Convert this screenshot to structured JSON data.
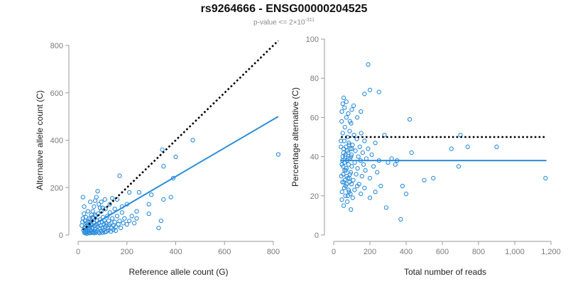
{
  "header": {
    "title": "rs9264666 - ENSG00000204525",
    "subtitle_prefix": "p-value <= 2",
    "subtitle_times": "×",
    "subtitle_base": "10",
    "subtitle_exp": "-311"
  },
  "colors": {
    "points": "#2b8cdb",
    "fit_line": "#2b8cdb",
    "reference_line": "#000000"
  },
  "chart_data": [
    {
      "type": "scatter",
      "xlabel": "Reference allele count (G)",
      "ylabel": "Alternative allele count (C)",
      "xlim": [
        0,
        840
      ],
      "ylim": [
        0,
        820
      ],
      "xticks": [
        0,
        200,
        400,
        600,
        800
      ],
      "xtick_labels": [
        "0",
        "200",
        "400",
        "600",
        "800"
      ],
      "yticks": [
        0,
        200,
        400,
        600,
        800
      ],
      "ytick_labels": [
        "0",
        "200",
        "400",
        "600",
        "800"
      ],
      "grid": false,
      "points": [
        [
          22,
          20
        ],
        [
          25,
          28
        ],
        [
          28,
          15
        ],
        [
          30,
          35
        ],
        [
          32,
          22
        ],
        [
          35,
          40
        ],
        [
          38,
          18
        ],
        [
          40,
          30
        ],
        [
          42,
          45
        ],
        [
          45,
          25
        ],
        [
          48,
          55
        ],
        [
          50,
          35
        ],
        [
          52,
          20
        ],
        [
          55,
          60
        ],
        [
          58,
          42
        ],
        [
          60,
          30
        ],
        [
          62,
          70
        ],
        [
          65,
          50
        ],
        [
          68,
          38
        ],
        [
          70,
          25
        ],
        [
          72,
          80
        ],
        [
          75,
          45
        ],
        [
          78,
          60
        ],
        [
          80,
          35
        ],
        [
          82,
          90
        ],
        [
          85,
          50
        ],
        [
          88,
          30
        ],
        [
          90,
          65
        ],
        [
          92,
          40
        ],
        [
          95,
          100
        ],
        [
          98,
          55
        ],
        [
          100,
          30
        ],
        [
          102,
          75
        ],
        [
          105,
          45
        ],
        [
          108,
          60
        ],
        [
          110,
          35
        ],
        [
          112,
          110
        ],
        [
          115,
          50
        ],
        [
          118,
          40
        ],
        [
          120,
          80
        ],
        [
          122,
          30
        ],
        [
          125,
          60
        ],
        [
          128,
          45
        ],
        [
          130,
          95
        ],
        [
          135,
          50
        ],
        [
          138,
          30
        ],
        [
          140,
          70
        ],
        [
          145,
          40
        ],
        [
          150,
          55
        ],
        [
          155,
          35
        ],
        [
          160,
          80
        ],
        [
          165,
          45
        ],
        [
          170,
          60
        ],
        [
          175,
          30
        ],
        [
          180,
          95
        ],
        [
          185,
          50
        ],
        [
          190,
          70
        ],
        [
          200,
          45
        ],
        [
          210,
          60
        ],
        [
          220,
          80
        ],
        [
          230,
          50
        ],
        [
          240,
          70
        ],
        [
          28,
          60
        ],
        [
          32,
          75
        ],
        [
          35,
          50
        ],
        [
          45,
          70
        ],
        [
          55,
          85
        ],
        [
          60,
          100
        ],
        [
          65,
          120
        ],
        [
          70,
          145
        ],
        [
          75,
          160
        ],
        [
          80,
          185
        ],
        [
          85,
          130
        ],
        [
          90,
          115
        ],
        [
          95,
          140
        ],
        [
          100,
          115
        ],
        [
          110,
          150
        ],
        [
          130,
          130
        ],
        [
          140,
          155
        ],
        [
          150,
          110
        ],
        [
          160,
          150
        ],
        [
          170,
          250
        ],
        [
          180,
          120
        ],
        [
          200,
          130
        ],
        [
          210,
          180
        ],
        [
          240,
          100
        ],
        [
          250,
          180
        ],
        [
          290,
          90
        ],
        [
          290,
          130
        ],
        [
          300,
          170
        ],
        [
          330,
          30
        ],
        [
          340,
          60
        ],
        [
          345,
          360
        ],
        [
          350,
          290
        ],
        [
          350,
          150
        ],
        [
          380,
          160
        ],
        [
          390,
          240
        ],
        [
          400,
          330
        ],
        [
          470,
          400
        ],
        [
          820,
          340
        ],
        [
          20,
          160
        ],
        [
          25,
          120
        ],
        [
          40,
          100
        ],
        [
          50,
          140
        ],
        [
          15,
          40
        ],
        [
          18,
          55
        ],
        [
          20,
          70
        ],
        [
          24,
          90
        ],
        [
          26,
          10
        ],
        [
          30,
          8
        ],
        [
          33,
          12
        ],
        [
          36,
          6
        ],
        [
          44,
          10
        ],
        [
          48,
          8
        ],
        [
          52,
          15
        ],
        [
          56,
          10
        ],
        [
          62,
          12
        ],
        [
          66,
          8
        ],
        [
          70,
          15
        ],
        [
          74,
          10
        ],
        [
          78,
          18
        ],
        [
          84,
          12
        ],
        [
          88,
          8
        ],
        [
          94,
          15
        ],
        [
          100,
          10
        ],
        [
          104,
          20
        ],
        [
          110,
          12
        ],
        [
          116,
          15
        ],
        [
          124,
          20
        ],
        [
          134,
          15
        ],
        [
          144,
          22
        ],
        [
          154,
          18
        ],
        [
          40,
          55
        ],
        [
          50,
          65
        ],
        [
          60,
          75
        ],
        [
          70,
          85
        ]
      ],
      "fit_line": [
        [
          20,
          18
        ],
        [
          820,
          500
        ]
      ],
      "reference_line": [
        [
          20,
          20
        ],
        [
          820,
          820
        ]
      ]
    },
    {
      "type": "scatter",
      "xlabel": "Total number of reads",
      "ylabel": "Percentage alternative (C)",
      "xlim": [
        0,
        1200
      ],
      "ylim": [
        0,
        100
      ],
      "xticks": [
        0,
        200,
        400,
        600,
        800,
        1000,
        1200
      ],
      "xtick_labels": [
        "0",
        "200",
        "400",
        "600",
        "800",
        "1,000",
        "1,200"
      ],
      "yticks": [
        0,
        20,
        40,
        60,
        80,
        100
      ],
      "ytick_labels": [
        "0",
        "20",
        "40",
        "60",
        "80",
        "100"
      ],
      "grid": false,
      "points": [
        [
          40,
          45
        ],
        [
          42,
          30
        ],
        [
          44,
          58
        ],
        [
          46,
          22
        ],
        [
          48,
          38
        ],
        [
          50,
          52
        ],
        [
          52,
          35
        ],
        [
          54,
          42
        ],
        [
          56,
          27
        ],
        [
          58,
          48
        ],
        [
          60,
          33
        ],
        [
          62,
          55
        ],
        [
          64,
          40
        ],
        [
          66,
          25
        ],
        [
          68,
          45
        ],
        [
          70,
          60
        ],
        [
          72,
          30
        ],
        [
          74,
          38
        ],
        [
          76,
          50
        ],
        [
          78,
          20
        ],
        [
          80,
          42
        ],
        [
          82,
          36
        ],
        [
          84,
          47
        ],
        [
          86,
          29
        ],
        [
          88,
          53
        ],
        [
          90,
          39
        ],
        [
          92,
          44
        ],
        [
          94,
          32
        ],
        [
          96,
          57
        ],
        [
          98,
          41
        ],
        [
          100,
          35
        ],
        [
          104,
          46
        ],
        [
          108,
          28
        ],
        [
          112,
          51
        ],
        [
          116,
          37
        ],
        [
          120,
          43
        ],
        [
          124,
          31
        ],
        [
          128,
          49
        ],
        [
          132,
          34
        ],
        [
          136,
          40
        ],
        [
          140,
          26
        ],
        [
          144,
          45
        ],
        [
          148,
          38
        ],
        [
          152,
          52
        ],
        [
          156,
          30
        ],
        [
          160,
          42
        ],
        [
          165,
          36
        ],
        [
          170,
          48
        ],
        [
          175,
          33
        ],
        [
          180,
          39
        ],
        [
          190,
          44
        ],
        [
          200,
          29
        ],
        [
          210,
          41
        ],
        [
          220,
          35
        ],
        [
          230,
          47
        ],
        [
          240,
          32
        ],
        [
          250,
          38
        ],
        [
          45,
          63
        ],
        [
          50,
          67
        ],
        [
          55,
          70
        ],
        [
          60,
          65
        ],
        [
          70,
          68
        ],
        [
          80,
          62
        ],
        [
          90,
          58
        ],
        [
          100,
          64
        ],
        [
          110,
          66
        ],
        [
          130,
          60
        ],
        [
          150,
          63
        ],
        [
          170,
          72
        ],
        [
          200,
          74
        ],
        [
          250,
          73
        ],
        [
          190,
          87
        ],
        [
          45,
          18
        ],
        [
          55,
          15
        ],
        [
          65,
          20
        ],
        [
          75,
          17
        ],
        [
          85,
          22
        ],
        [
          95,
          13
        ],
        [
          105,
          19
        ],
        [
          115,
          23
        ],
        [
          130,
          25
        ],
        [
          150,
          21
        ],
        [
          170,
          24
        ],
        [
          200,
          19
        ],
        [
          230,
          22
        ],
        [
          260,
          25
        ],
        [
          280,
          51
        ],
        [
          290,
          14
        ],
        [
          300,
          37
        ],
        [
          320,
          39
        ],
        [
          340,
          36
        ],
        [
          350,
          38
        ],
        [
          370,
          8
        ],
        [
          380,
          25
        ],
        [
          400,
          21
        ],
        [
          420,
          59
        ],
        [
          430,
          42
        ],
        [
          500,
          28
        ],
        [
          550,
          29
        ],
        [
          650,
          44
        ],
        [
          690,
          35
        ],
        [
          700,
          51
        ],
        [
          740,
          45
        ],
        [
          900,
          45
        ],
        [
          1170,
          29
        ],
        [
          40,
          48
        ],
        [
          45,
          36
        ],
        [
          50,
          40
        ],
        [
          55,
          44
        ],
        [
          60,
          37
        ],
        [
          65,
          41
        ],
        [
          70,
          34
        ],
        [
          75,
          43
        ],
        [
          80,
          39
        ],
        [
          85,
          46
        ],
        [
          90,
          31
        ],
        [
          95,
          40
        ],
        [
          100,
          44
        ],
        [
          48,
          27
        ],
        [
          52,
          31
        ],
        [
          58,
          24
        ],
        [
          62,
          28
        ],
        [
          68,
          33
        ],
        [
          72,
          26
        ],
        [
          78,
          29
        ],
        [
          82,
          23
        ],
        [
          88,
          27
        ],
        [
          92,
          21
        ],
        [
          98,
          26
        ]
      ],
      "fit_line": [
        [
          40,
          38
        ],
        [
          1175,
          38
        ]
      ],
      "reference_line": [
        [
          40,
          50
        ],
        [
          1175,
          50
        ]
      ]
    }
  ]
}
